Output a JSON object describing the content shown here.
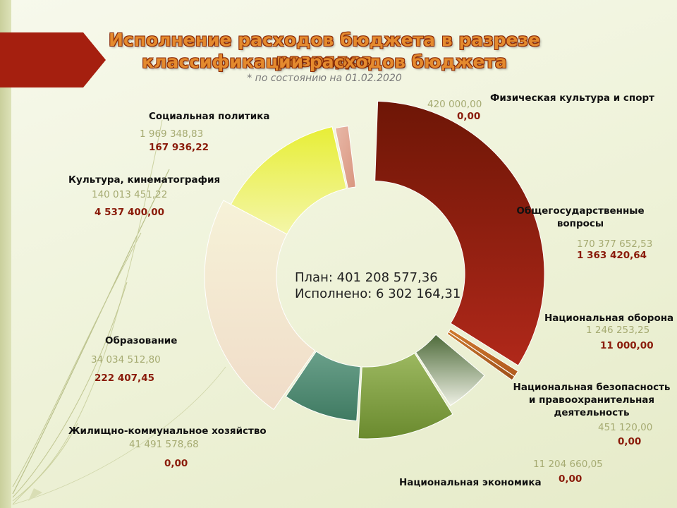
{
  "title_line1": "Исполнение расходов бюджета в разрезе разрядов",
  "title_line2": "классификации расходов бюджета",
  "subtitle": "* по состоянию на 01.02.2020",
  "center": {
    "plan_text": "План: 401 208 577,36",
    "executed_text": "Исполнено: 6 302 164,31"
  },
  "colors": {
    "accent": "#a51f0f",
    "plan_text": "#a6ab72",
    "executed_text": "#8a1b0a"
  },
  "chart_data": {
    "type": "pie",
    "variant": "donut",
    "categories": [
      {
        "name": "Физическая культура и спорт",
        "plan": "420 000,00",
        "executed": "0,00",
        "value": 420000.0,
        "color": "#e8b3a4"
      },
      {
        "name": "Общегосударственные вопросы",
        "plan": "170 377 652,53",
        "executed": "1 363 420,64",
        "value": 170377652.53,
        "color": "#8e1a0b"
      },
      {
        "name": "Национальная оборона",
        "plan": "1 246 253,25",
        "executed": "11 000,00",
        "value": 1246253.25,
        "color": "#d48a3a"
      },
      {
        "name": "Национальная безопасность и правоохранительная деятельность",
        "plan": "451 120,00",
        "executed": "0,00",
        "value": 451120.0,
        "color": "#b56a2a"
      },
      {
        "name": "Национальная экономика",
        "plan": "11 204 660,05",
        "executed": "0,00",
        "value": 11204660.05,
        "color": "#5e7a45"
      },
      {
        "name": "Жилищно-коммунальное хозяйство",
        "plan": "41 491 578,68",
        "executed": "0,00",
        "value": 41491578.68,
        "color": "#7fa83e"
      },
      {
        "name": "Образование",
        "plan": "34 034 512,80",
        "executed": "222 407,45",
        "value": 34034512.8,
        "color": "#4e8a72"
      },
      {
        "name": "Культура, кинематография",
        "plan": "140 013 451,22",
        "executed": "4 537 400,00",
        "value": 140013451.22,
        "color": "#f0e0cc"
      },
      {
        "name": "Социальная политика",
        "plan": "1 969 348,83",
        "executed": "167 936,22",
        "value": 1969348.83,
        "color": "#e9ef48"
      }
    ]
  }
}
